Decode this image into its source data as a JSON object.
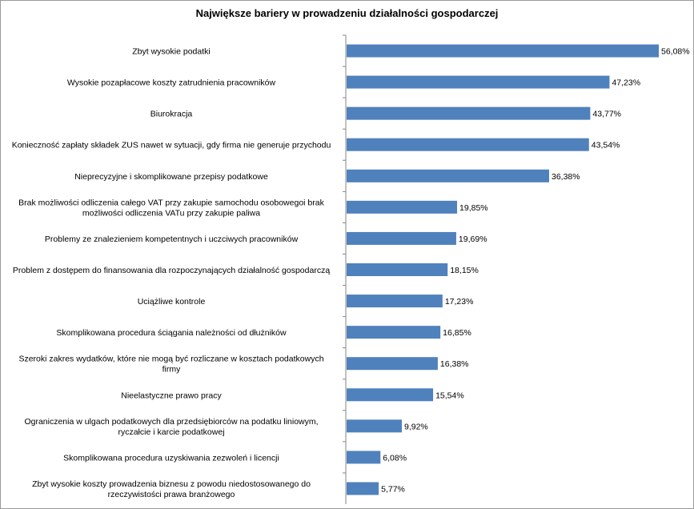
{
  "chart_data": {
    "type": "bar",
    "orientation": "horizontal",
    "title": "Największe bariery w prowadzeniu działalności gospodarczej",
    "xlabel": "",
    "ylabel": "",
    "xlim": [
      0,
      56.08
    ],
    "grid": false,
    "legend": "none",
    "bar_color": "#4F81BD",
    "value_suffix": "%",
    "categories": [
      [
        "Zbyt wysokie podatki"
      ],
      [
        "Wysokie pozapłacowe koszty zatrudnienia pracowników"
      ],
      [
        "Biurokracja"
      ],
      [
        "Konieczność zapłaty składek ZUS nawet w sytuacji, gdy firma nie generuje przychodu"
      ],
      [
        "Nieprecyzyjne i skomplikowane przepisy podatkowe"
      ],
      [
        "Brak możliwości odliczenia całego VAT przy zakupie samochodu osobowegoi brak",
        "możliwości odliczenia VATu przy zakupie paliwa"
      ],
      [
        "Problemy ze znalezieniem kompetentnych i uczciwych pracowników"
      ],
      [
        "Problem z dostępem do finansowania dla rozpoczynających działalność gospodarczą"
      ],
      [
        "Uciążliwe kontrole"
      ],
      [
        "Skomplikowana procedura ściągania należności od dłużników"
      ],
      [
        "Szeroki zakres wydatków, które nie mogą być rozliczane w kosztach podatkowych",
        "firmy"
      ],
      [
        "Nieelastyczne prawo pracy"
      ],
      [
        "Ograniczenia w ulgach podatkowych dla przedsiębiorców na podatku liniowym,",
        "ryczałcie i karcie podatkowej"
      ],
      [
        "Skomplikowana procedura uzyskiwania zezwoleń i licencji"
      ],
      [
        "Zbyt wysokie koszty prowadzenia biznesu z powodu niedostosowanego do",
        "rzeczywistości prawa branżowego"
      ]
    ],
    "values": [
      56.08,
      47.23,
      43.77,
      43.54,
      36.38,
      19.85,
      19.69,
      18.15,
      17.23,
      16.85,
      16.38,
      15.54,
      9.92,
      6.08,
      5.77
    ],
    "data_labels": [
      "56,08%",
      "47,23%",
      "43,77%",
      "43,54%",
      "36,38%",
      "19,85%",
      "19,69%",
      "18,15%",
      "17,23%",
      "16,85%",
      "16,38%",
      "15,54%",
      "9,92%",
      "6,08%",
      "5,77%"
    ]
  }
}
